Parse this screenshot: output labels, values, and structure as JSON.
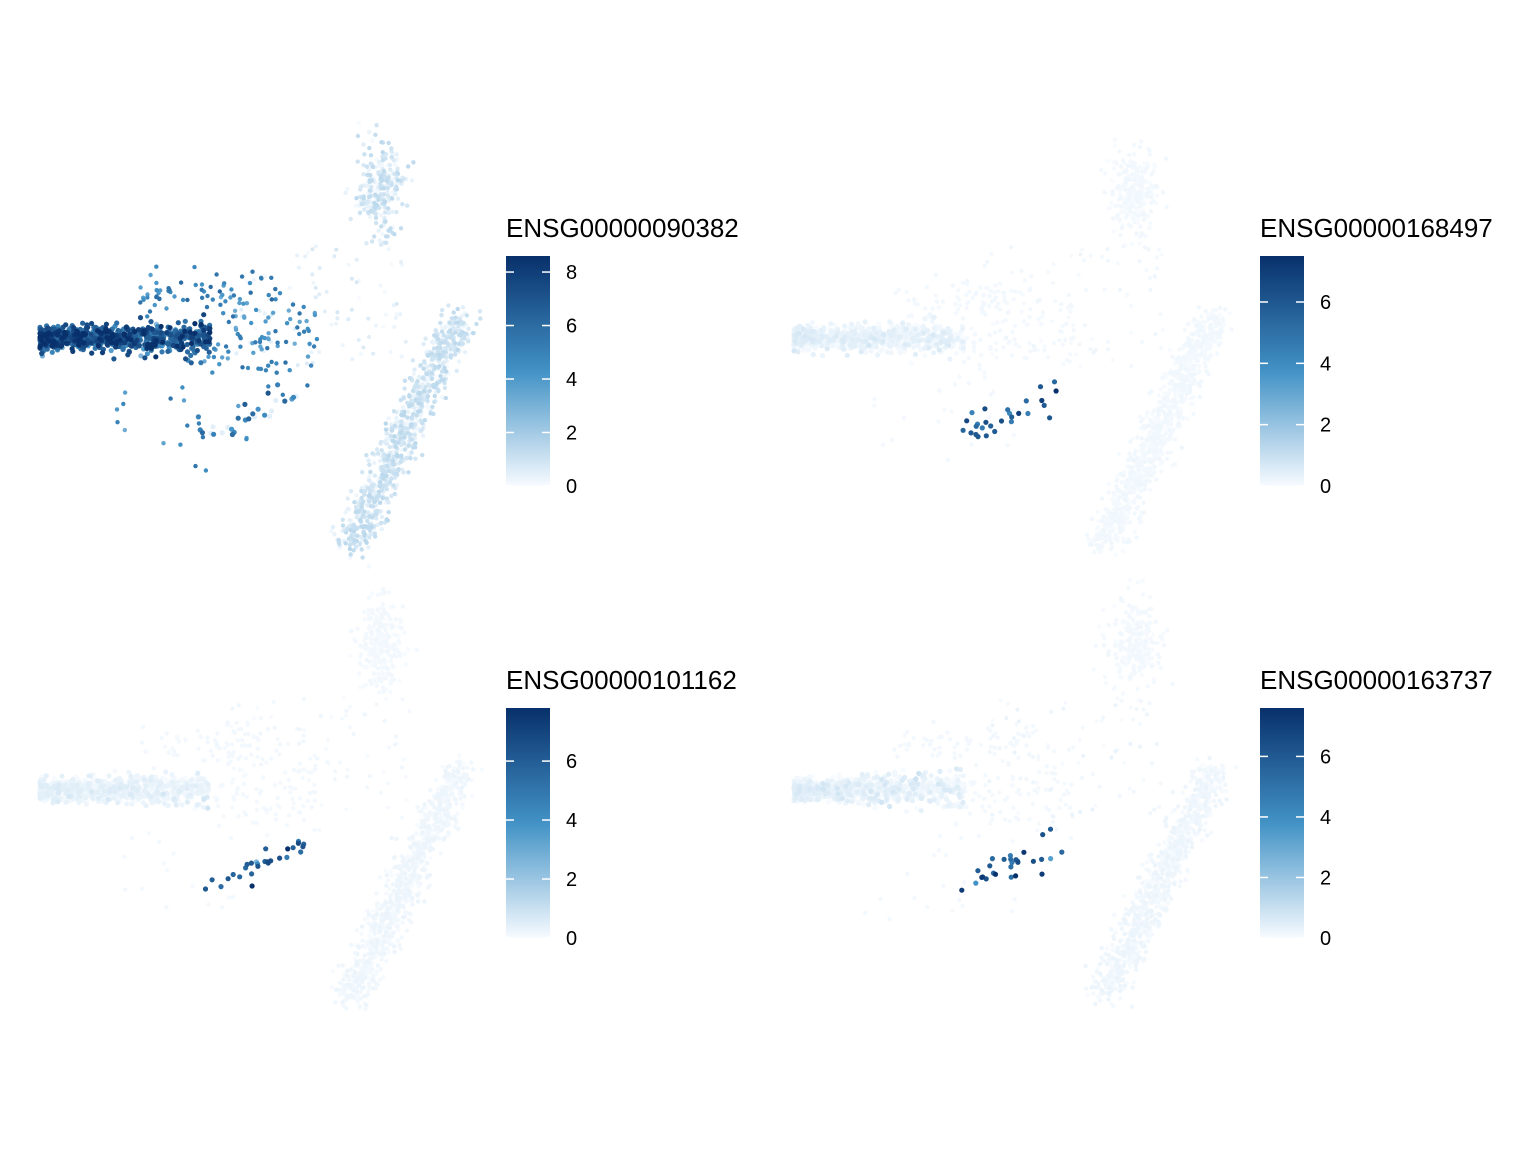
{
  "chart_data": [
    {
      "type": "scatter",
      "legend_title": "ENSG00000090382",
      "scale_max": 8.6,
      "ticks": [
        0,
        2,
        4,
        6,
        8
      ],
      "color_low": "#f7fbff",
      "color_high": "#08306b",
      "seed": 11,
      "profile": {
        "left": 6.2,
        "left_sd": 1.6,
        "left_tail": 5.2,
        "right_arm": 0.9,
        "top": 1.0,
        "lower": 5.5,
        "lower_fraction": 0.6,
        "cross": 0.4
      },
      "legend_placement": "right",
      "grid": false
    },
    {
      "type": "scatter",
      "legend_title": "ENSG00000168497",
      "scale_max": 7.5,
      "ticks": [
        0,
        2,
        4,
        6
      ],
      "color_low": "#f7fbff",
      "color_high": "#08306b",
      "seed": 23,
      "profile": {
        "left": 0.15,
        "left_sd": 0.2,
        "left_tail": 0.1,
        "right_arm": 0.1,
        "top": 0.1,
        "lower": 6.0,
        "lower_fraction": 1.0,
        "cross": 0.1
      },
      "legend_placement": "right",
      "grid": false
    },
    {
      "type": "scatter",
      "legend_title": "ENSG00000101162",
      "scale_max": 7.8,
      "ticks": [
        0,
        2,
        4,
        6
      ],
      "color_low": "#f7fbff",
      "color_high": "#08306b",
      "seed": 37,
      "profile": {
        "left": 0.15,
        "left_sd": 0.2,
        "left_tail": 0.1,
        "right_arm": 0.15,
        "top": 0.1,
        "lower": 6.2,
        "lower_fraction": 1.0,
        "cross": 0.1
      },
      "legend_placement": "right",
      "grid": false
    },
    {
      "type": "scatter",
      "legend_title": "ENSG00000163737",
      "scale_max": 7.6,
      "ticks": [
        0,
        2,
        4,
        6
      ],
      "color_low": "#f7fbff",
      "color_high": "#08306b",
      "seed": 53,
      "profile": {
        "left": 0.15,
        "left_sd": 0.25,
        "left_tail": 0.1,
        "right_arm": 0.15,
        "top": 0.1,
        "lower": 6.0,
        "lower_fraction": 1.0,
        "cross": 0.15
      },
      "legend_placement": "right",
      "grid": false
    }
  ]
}
